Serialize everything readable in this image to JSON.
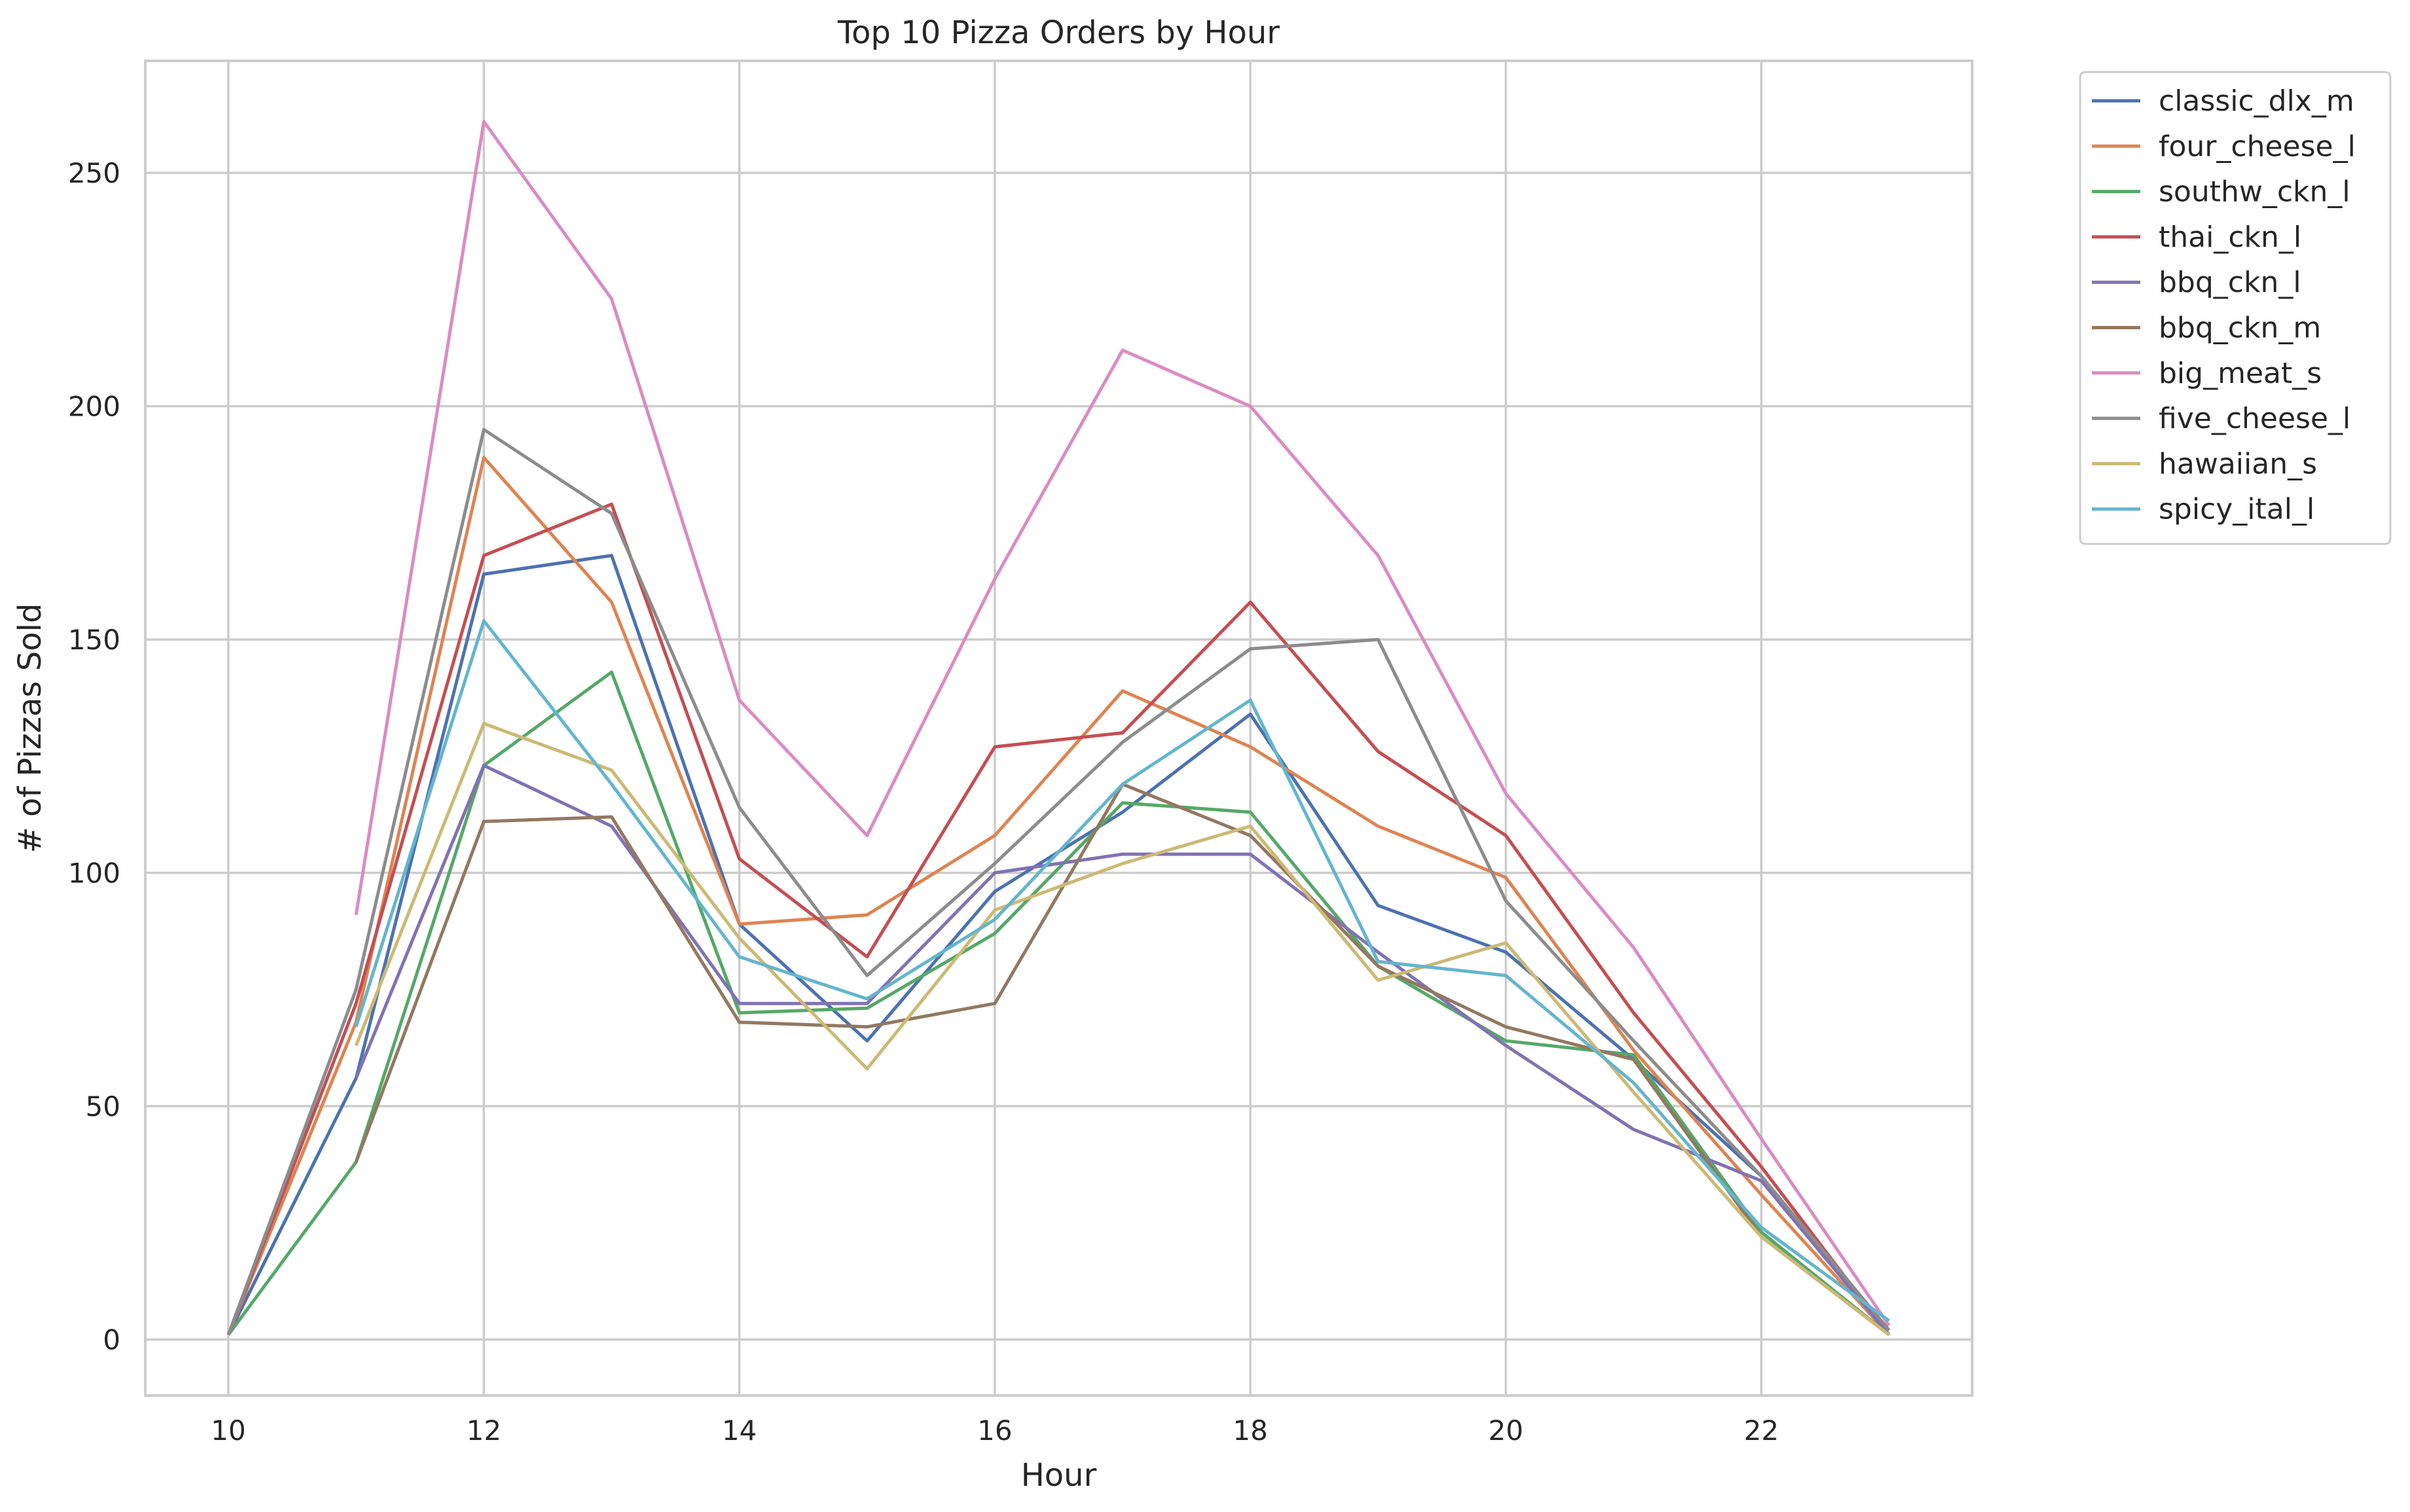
{
  "chart_data": {
    "type": "line",
    "title": "Top 10 Pizza Orders by Hour",
    "xlabel": "Hour",
    "ylabel": "# of Pizzas Sold",
    "xlim": [
      9.35,
      23.65
    ],
    "ylim": [
      -12,
      274
    ],
    "xticks": [
      10,
      12,
      14,
      16,
      18,
      20,
      22
    ],
    "yticks": [
      0,
      50,
      100,
      150,
      200,
      250
    ],
    "grid": true,
    "legend_position": "outside-top-right",
    "series": [
      {
        "name": "classic_dlx_m",
        "color": "#4c72b0",
        "x": [
          10,
          11,
          12,
          13,
          14,
          15,
          16,
          17,
          18,
          19,
          20,
          21,
          22,
          23
        ],
        "y": [
          1,
          56,
          164,
          168,
          89,
          64,
          96,
          113,
          134,
          93,
          83,
          60,
          35,
          1
        ]
      },
      {
        "name": "four_cheese_l",
        "color": "#dd8452",
        "x": [
          10,
          11,
          12,
          13,
          14,
          15,
          16,
          17,
          18,
          19,
          20,
          21,
          22,
          23
        ],
        "y": [
          1,
          68,
          189,
          158,
          89,
          91,
          108,
          139,
          127,
          110,
          99,
          62,
          31,
          1
        ]
      },
      {
        "name": "southw_ckn_l",
        "color": "#55a868",
        "x": [
          10,
          11,
          12,
          13,
          14,
          15,
          16,
          17,
          18,
          19,
          20,
          21,
          22,
          23
        ],
        "y": [
          1,
          38,
          123,
          143,
          70,
          71,
          87,
          115,
          113,
          80,
          64,
          61,
          23,
          1
        ]
      },
      {
        "name": "thai_ckn_l",
        "color": "#c44e52",
        "x": [
          10,
          11,
          12,
          13,
          14,
          15,
          16,
          17,
          18,
          19,
          20,
          21,
          22,
          23
        ],
        "y": [
          1,
          72,
          168,
          179,
          103,
          82,
          127,
          130,
          158,
          126,
          108,
          70,
          37,
          1
        ]
      },
      {
        "name": "bbq_ckn_l",
        "color": "#8172b3",
        "x": [
          11,
          12,
          13,
          14,
          15,
          16,
          17,
          18,
          19,
          20,
          21,
          22,
          23
        ],
        "y": [
          56,
          123,
          110,
          72,
          72,
          100,
          104,
          104,
          83,
          63,
          45,
          34,
          1
        ]
      },
      {
        "name": "bbq_ckn_m",
        "color": "#937860",
        "x": [
          11,
          12,
          13,
          14,
          15,
          16,
          17,
          18,
          19,
          20,
          21,
          22,
          23
        ],
        "y": [
          38,
          111,
          112,
          68,
          67,
          72,
          119,
          108,
          80,
          67,
          60,
          22,
          1
        ]
      },
      {
        "name": "big_meat_s",
        "color": "#da8bc3",
        "x": [
          11,
          12,
          13,
          14,
          15,
          16,
          17,
          18,
          19,
          20,
          21,
          22,
          23
        ],
        "y": [
          91,
          261,
          223,
          137,
          108,
          163,
          212,
          200,
          168,
          117,
          84,
          43,
          3
        ]
      },
      {
        "name": "five_cheese_l",
        "color": "#8c8c8c",
        "x": [
          10,
          11,
          12,
          13,
          14,
          15,
          16,
          17,
          18,
          19,
          20,
          21,
          22,
          23
        ],
        "y": [
          1,
          75,
          195,
          177,
          114,
          78,
          102,
          128,
          148,
          150,
          94,
          64,
          35,
          2
        ]
      },
      {
        "name": "hawaiian_s",
        "color": "#ccb974",
        "x": [
          11,
          12,
          13,
          14,
          15,
          16,
          17,
          18,
          19,
          20,
          21,
          22,
          23
        ],
        "y": [
          63,
          132,
          122,
          86,
          58,
          92,
          102,
          110,
          77,
          85,
          53,
          22,
          1
        ]
      },
      {
        "name": "spicy_ital_l",
        "color": "#64b5cd",
        "x": [
          11,
          12,
          13,
          14,
          15,
          16,
          17,
          18,
          19,
          20,
          21,
          22,
          23
        ],
        "y": [
          67,
          154,
          119,
          82,
          73,
          90,
          119,
          137,
          81,
          78,
          55,
          24,
          4
        ]
      }
    ]
  }
}
